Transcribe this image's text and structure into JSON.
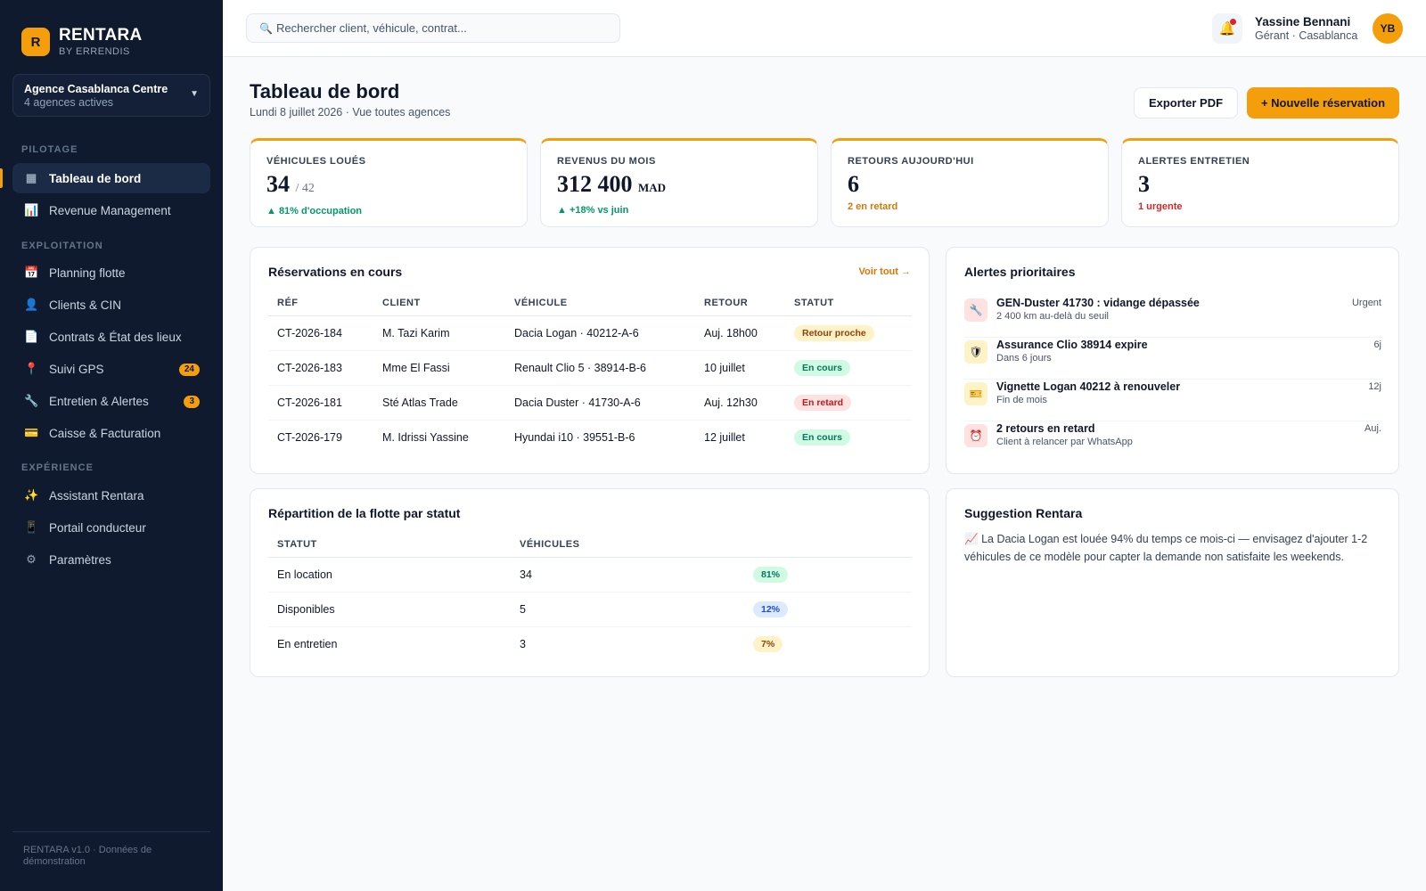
{
  "brand": {
    "logo_letter": "R",
    "name": "RENTARA",
    "sub": "BY ERRENDIS"
  },
  "agency": {
    "name": "Agence Casablanca Centre",
    "sub": "4 agences actives"
  },
  "sidebar": {
    "sections": [
      "PILOTAGE",
      "EXPLOITATION",
      "EXPÉRIENCE"
    ],
    "items": [
      {
        "label": "Tableau de bord",
        "icon": "▦",
        "icon_name": "dashboard-icon"
      },
      {
        "label": "Revenue Management",
        "icon": "📊",
        "icon_name": "chart-icon"
      },
      {
        "label": "Planning flotte",
        "icon": "📅",
        "icon_name": "calendar-icon"
      },
      {
        "label": "Clients & CIN",
        "icon": "👤",
        "icon_name": "user-icon"
      },
      {
        "label": "Contrats & État des lieux",
        "icon": "📄",
        "icon_name": "document-icon"
      },
      {
        "label": "Suivi GPS",
        "icon": "📍",
        "icon_name": "location-pin-icon",
        "badge": "24"
      },
      {
        "label": "Entretien & Alertes",
        "icon": "🔧",
        "icon_name": "wrench-icon",
        "badge": "3"
      },
      {
        "label": "Caisse & Facturation",
        "icon": "💳",
        "icon_name": "credit-card-icon"
      },
      {
        "label": "Assistant Rentara",
        "icon": "✨",
        "icon_name": "sparkles-icon"
      },
      {
        "label": "Portail conducteur",
        "icon": "📱",
        "icon_name": "mobile-icon"
      },
      {
        "label": "Paramètres",
        "icon": "⚙",
        "icon_name": "gear-icon"
      }
    ],
    "footer": "RENTARA v1.0 · Données de démonstration"
  },
  "topbar": {
    "search_placeholder": "Rechercher client, véhicule, contrat...",
    "search_icon": "🔍",
    "bell_icon": "🔔",
    "user_name": "Yassine Bennani",
    "user_role": "Gérant · Casablanca",
    "avatar_initials": "YB"
  },
  "page": {
    "title": "Tableau de bord",
    "subtitle": "Lundi 8 juillet 2026 · Vue toutes agences",
    "export_label": "Exporter PDF",
    "new_label": "+ Nouvelle réservation"
  },
  "kpis": [
    {
      "label": "VÉHICULES LOUÉS",
      "value": "34",
      "small": "/ 42",
      "unit": "",
      "note": "▲ 81% d'occupation",
      "note_color": "#059669"
    },
    {
      "label": "REVENUS DU MOIS",
      "value": "312 400",
      "small": "",
      "unit": "MAD",
      "note": "▲ +18% vs juin",
      "note_color": "#059669"
    },
    {
      "label": "RETOURS AUJOURD'HUI",
      "value": "6",
      "small": "",
      "unit": "",
      "note": "2 en retard",
      "note_color": "#d97706"
    },
    {
      "label": "ALERTES ENTRETIEN",
      "value": "3",
      "small": "",
      "unit": "",
      "note": "1 urgente",
      "note_color": "#dc2626"
    }
  ],
  "reservations": {
    "title": "Réservations en cours",
    "link": "Voir tout →",
    "headers": [
      "RÉF",
      "CLIENT",
      "VÉHICULE",
      "RETOUR",
      "STATUT"
    ],
    "rows": [
      {
        "ref": "CT-2026-184",
        "client": "M. Tazi Karim",
        "vehicle": "Dacia Logan · 40212-A-6",
        "retour": "Auj. 18h00",
        "status": "Retour proche",
        "status_bg": "#fef3c7",
        "status_fg": "#92400e"
      },
      {
        "ref": "CT-2026-183",
        "client": "Mme El Fassi",
        "vehicle": "Renault Clio 5 · 38914-B-6",
        "retour": "10 juillet",
        "status": "En cours",
        "status_bg": "#d1fae5",
        "status_fg": "#047857"
      },
      {
        "ref": "CT-2026-181",
        "client": "Sté Atlas Trade",
        "vehicle": "Dacia Duster · 41730-A-6",
        "retour": "Auj. 12h30",
        "status": "En retard",
        "status_bg": "#fee2e2",
        "status_fg": "#b91c1c"
      },
      {
        "ref": "CT-2026-179",
        "client": "M. Idrissi Yassine",
        "vehicle": "Hyundai i10 · 39551-B-6",
        "retour": "12 juillet",
        "status": "En cours",
        "status_bg": "#d1fae5",
        "status_fg": "#047857"
      }
    ]
  },
  "alerts": {
    "title": "Alertes prioritaires",
    "items": [
      {
        "title": "GEN-Duster 41730 : vidange dépassée",
        "sub": "2 400 km au-delà du seuil",
        "tag": "Urgent",
        "icon": "🔧",
        "icon_name": "wrench-icon",
        "icon_bg": "#fee2e2"
      },
      {
        "title": "Assurance Clio 38914 expire",
        "sub": "Dans 6 jours",
        "tag": "6j",
        "icon": "🛡",
        "icon_name": "shield-icon",
        "icon_bg": "#fef3c7"
      },
      {
        "title": "Vignette Logan 40212 à renouveler",
        "sub": "Fin de mois",
        "tag": "12j",
        "icon": "🎫",
        "icon_name": "ticket-icon",
        "icon_bg": "#fef3c7"
      },
      {
        "title": "2 retours en retard",
        "sub": "Client à relancer par WhatsApp",
        "tag": "Auj.",
        "icon": "⏰",
        "icon_name": "alarm-clock-icon",
        "icon_bg": "#fee2e2"
      }
    ]
  },
  "fleet": {
    "title": "Répartition de la flotte par statut",
    "headers": [
      "STATUT",
      "VÉHICULES",
      ""
    ],
    "rows": [
      {
        "status": "En location",
        "count": "34",
        "pct": "81%",
        "pct_bg": "#d1fae5",
        "pct_fg": "#047857"
      },
      {
        "status": "Disponibles",
        "count": "5",
        "pct": "12%",
        "pct_bg": "#dbeafe",
        "pct_fg": "#1d4ed8"
      },
      {
        "status": "En entretien",
        "count": "3",
        "pct": "7%",
        "pct_bg": "#fef3c7",
        "pct_fg": "#92400e"
      }
    ]
  },
  "suggestion": {
    "title": "Suggestion Rentara",
    "icon": "📈",
    "text": "La Dacia Logan est louée 94% du temps ce mois-ci — envisagez d'ajouter 1-2 véhicules de ce modèle pour capter la demande non satisfaite les weekends."
  },
  "colors": {
    "accent": "#f59e0b",
    "sidebar_bg": "#0f1a2e",
    "success": "#059669",
    "warning": "#d97706",
    "danger": "#dc2626"
  }
}
